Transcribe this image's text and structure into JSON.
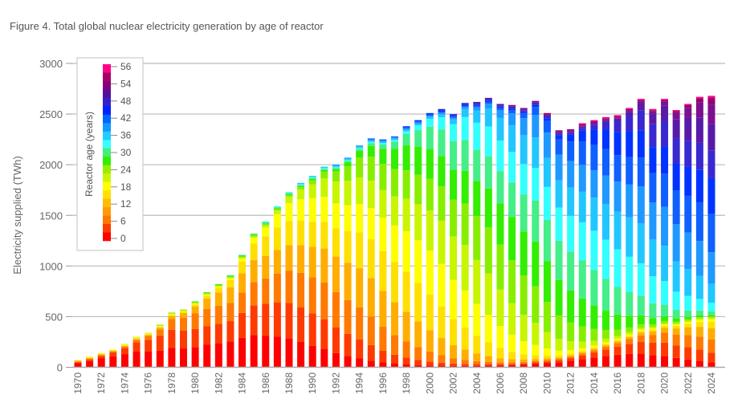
{
  "figure_title": "Figure 4. Total global nuclear electricity generation by age of reactor",
  "chart_data": {
    "type": "bar",
    "stacked": true,
    "title": "Figure 4. Total global nuclear electricity generation by age of reactor",
    "xlabel": "",
    "ylabel": "Electricity supplied (TWh)",
    "ylim": [
      0,
      3000
    ],
    "yticks": [
      0,
      500,
      1000,
      1500,
      2000,
      2500,
      3000
    ],
    "grid": true,
    "x": [
      1970,
      1971,
      1972,
      1973,
      1974,
      1975,
      1976,
      1977,
      1978,
      1979,
      1980,
      1981,
      1982,
      1983,
      1984,
      1985,
      1986,
      1987,
      1988,
      1989,
      1990,
      1991,
      1992,
      1993,
      1994,
      1995,
      1996,
      1997,
      1998,
      1999,
      2000,
      2001,
      2002,
      2003,
      2004,
      2005,
      2006,
      2007,
      2008,
      2009,
      2010,
      2011,
      2012,
      2013,
      2014,
      2015,
      2016,
      2017,
      2018,
      2019,
      2020,
      2021,
      2022,
      2023,
      2024
    ],
    "xtick_labels": [
      "1970",
      "1972",
      "1974",
      "1976",
      "1978",
      "1980",
      "1982",
      "1984",
      "1986",
      "1988",
      "1990",
      "1992",
      "1994",
      "1996",
      "1998",
      "2000",
      "2002",
      "2004",
      "2006",
      "2008",
      "2010",
      "2012",
      "2014",
      "2016",
      "2018",
      "2020",
      "2022",
      "2024"
    ],
    "totals": [
      70,
      105,
      140,
      175,
      230,
      300,
      340,
      420,
      540,
      570,
      650,
      740,
      820,
      910,
      1110,
      1320,
      1440,
      1590,
      1730,
      1820,
      1890,
      1980,
      2000,
      2070,
      2190,
      2260,
      2250,
      2280,
      2380,
      2440,
      2510,
      2550,
      2500,
      2610,
      2620,
      2660,
      2600,
      2590,
      2560,
      2630,
      2510,
      2340,
      2350,
      2410,
      2440,
      2470,
      2490,
      2560,
      2650,
      2550,
      2650,
      2540,
      2600,
      2670,
      2680
    ],
    "legend": {
      "title": "Reactor age (years)",
      "position": "top-left",
      "tick_labels": [
        "0",
        "6",
        "12",
        "18",
        "24",
        "30",
        "36",
        "42",
        "48",
        "54",
        "56"
      ],
      "bands": [
        "0-3",
        "3-6",
        "6-9",
        "9-12",
        "12-15",
        "15-18",
        "18-21",
        "21-24",
        "24-27",
        "27-30",
        "30-33",
        "33-36",
        "36-39",
        "39-42",
        "42-45",
        "45-48",
        "48-51",
        "51-54",
        "54-56"
      ],
      "colors": [
        "#ff0000",
        "#ff3a00",
        "#ff7700",
        "#ff9a00",
        "#ffbb00",
        "#ffe000",
        "#ffff00",
        "#ccf500",
        "#99ee00",
        "#33ee00",
        "#44ee77",
        "#33ffff",
        "#22ccff",
        "#1199ff",
        "#0066ff",
        "#0022ff",
        "#3322cc",
        "#551199",
        "#880077",
        "#aa0066",
        "#ff0088"
      ]
    },
    "band_colors": [
      "#ff0000",
      "#ff3a00",
      "#ff7a00",
      "#ffae00",
      "#ffe000",
      "#ffff00",
      "#c8f500",
      "#88ee00",
      "#33ee00",
      "#44ee88",
      "#33ffff",
      "#22c6ff",
      "#1f99ff",
      "#1060ff",
      "#0033ff",
      "#3a28d0",
      "#5a1aa8",
      "#7d1090",
      "#9a0070",
      "#ff0080"
    ]
  }
}
